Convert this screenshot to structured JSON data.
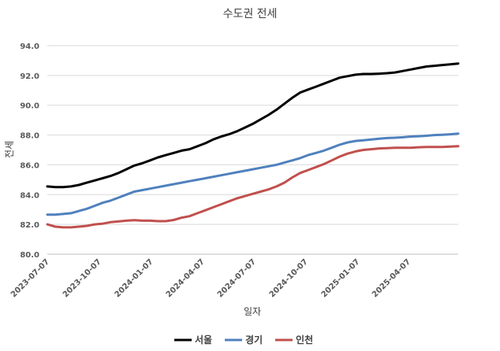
{
  "chart_data": {
    "type": "line",
    "title": "수도권 전세",
    "xlabel": "일자",
    "ylabel": "전세",
    "ylim": [
      80.0,
      94.0
    ],
    "ytick_step": 2.0,
    "yticks": [
      "80.0",
      "82.0",
      "84.0",
      "86.0",
      "88.0",
      "90.0",
      "92.0",
      "94.0"
    ],
    "x_start": "2023-07-03",
    "x_end": "2025-06-30",
    "xticks": [
      "2023-07-07",
      "2023-10-07",
      "2024-01-07",
      "2024-04-07",
      "2024-07-07",
      "2024-10-07",
      "2025-01-07",
      "2025-04-07"
    ],
    "grid": true,
    "legend_position": "bottom",
    "series": [
      {
        "name": "서울",
        "color": "#000000",
        "points": [
          [
            "2023-07-03",
            84.55
          ],
          [
            "2023-07-17",
            84.5
          ],
          [
            "2023-07-31",
            84.5
          ],
          [
            "2023-08-14",
            84.55
          ],
          [
            "2023-08-28",
            84.65
          ],
          [
            "2023-09-11",
            84.8
          ],
          [
            "2023-09-25",
            84.95
          ],
          [
            "2023-10-09",
            85.1
          ],
          [
            "2023-10-23",
            85.25
          ],
          [
            "2023-11-06",
            85.45
          ],
          [
            "2023-11-20",
            85.7
          ],
          [
            "2023-12-04",
            85.95
          ],
          [
            "2023-12-18",
            86.1
          ],
          [
            "2024-01-01",
            86.3
          ],
          [
            "2024-01-15",
            86.5
          ],
          [
            "2024-01-29",
            86.65
          ],
          [
            "2024-02-12",
            86.8
          ],
          [
            "2024-02-26",
            86.95
          ],
          [
            "2024-03-11",
            87.05
          ],
          [
            "2024-03-25",
            87.25
          ],
          [
            "2024-04-08",
            87.45
          ],
          [
            "2024-04-22",
            87.7
          ],
          [
            "2024-05-06",
            87.9
          ],
          [
            "2024-05-20",
            88.05
          ],
          [
            "2024-06-03",
            88.25
          ],
          [
            "2024-06-17",
            88.5
          ],
          [
            "2024-07-01",
            88.75
          ],
          [
            "2024-07-15",
            89.05
          ],
          [
            "2024-07-29",
            89.35
          ],
          [
            "2024-08-12",
            89.7
          ],
          [
            "2024-08-26",
            90.1
          ],
          [
            "2024-09-09",
            90.5
          ],
          [
            "2024-09-23",
            90.85
          ],
          [
            "2024-10-07",
            91.05
          ],
          [
            "2024-10-21",
            91.25
          ],
          [
            "2024-11-04",
            91.45
          ],
          [
            "2024-11-18",
            91.65
          ],
          [
            "2024-12-02",
            91.85
          ],
          [
            "2024-12-16",
            91.95
          ],
          [
            "2024-12-30",
            92.05
          ],
          [
            "2025-01-13",
            92.1
          ],
          [
            "2025-01-27",
            92.1
          ],
          [
            "2025-02-10",
            92.12
          ],
          [
            "2025-02-24",
            92.15
          ],
          [
            "2025-03-10",
            92.2
          ],
          [
            "2025-03-24",
            92.3
          ],
          [
            "2025-04-07",
            92.4
          ],
          [
            "2025-04-21",
            92.5
          ],
          [
            "2025-05-05",
            92.6
          ],
          [
            "2025-05-19",
            92.65
          ],
          [
            "2025-06-02",
            92.7
          ],
          [
            "2025-06-16",
            92.75
          ],
          [
            "2025-06-30",
            92.8
          ]
        ]
      },
      {
        "name": "경기",
        "color": "#4f81bd",
        "points": [
          [
            "2023-07-03",
            82.65
          ],
          [
            "2023-07-17",
            82.65
          ],
          [
            "2023-07-31",
            82.7
          ],
          [
            "2023-08-14",
            82.75
          ],
          [
            "2023-08-28",
            82.9
          ],
          [
            "2023-09-11",
            83.05
          ],
          [
            "2023-09-25",
            83.25
          ],
          [
            "2023-10-09",
            83.45
          ],
          [
            "2023-10-23",
            83.6
          ],
          [
            "2023-11-06",
            83.8
          ],
          [
            "2023-11-20",
            84.0
          ],
          [
            "2023-12-04",
            84.2
          ],
          [
            "2023-12-18",
            84.3
          ],
          [
            "2024-01-01",
            84.4
          ],
          [
            "2024-01-15",
            84.5
          ],
          [
            "2024-01-29",
            84.6
          ],
          [
            "2024-02-12",
            84.7
          ],
          [
            "2024-02-26",
            84.8
          ],
          [
            "2024-03-11",
            84.9
          ],
          [
            "2024-03-25",
            85.0
          ],
          [
            "2024-04-08",
            85.1
          ],
          [
            "2024-04-22",
            85.2
          ],
          [
            "2024-05-06",
            85.3
          ],
          [
            "2024-05-20",
            85.4
          ],
          [
            "2024-06-03",
            85.5
          ],
          [
            "2024-06-17",
            85.6
          ],
          [
            "2024-07-01",
            85.7
          ],
          [
            "2024-07-15",
            85.8
          ],
          [
            "2024-07-29",
            85.9
          ],
          [
            "2024-08-12",
            86.0
          ],
          [
            "2024-08-26",
            86.15
          ],
          [
            "2024-09-09",
            86.3
          ],
          [
            "2024-09-23",
            86.45
          ],
          [
            "2024-10-07",
            86.65
          ],
          [
            "2024-10-21",
            86.8
          ],
          [
            "2024-11-04",
            86.95
          ],
          [
            "2024-11-18",
            87.15
          ],
          [
            "2024-12-02",
            87.35
          ],
          [
            "2024-12-16",
            87.5
          ],
          [
            "2024-12-30",
            87.6
          ],
          [
            "2025-01-13",
            87.65
          ],
          [
            "2025-01-27",
            87.7
          ],
          [
            "2025-02-10",
            87.75
          ],
          [
            "2025-02-24",
            87.8
          ],
          [
            "2025-03-10",
            87.82
          ],
          [
            "2025-03-24",
            87.85
          ],
          [
            "2025-04-07",
            87.9
          ],
          [
            "2025-04-21",
            87.92
          ],
          [
            "2025-05-05",
            87.95
          ],
          [
            "2025-05-19",
            88.0
          ],
          [
            "2025-06-02",
            88.02
          ],
          [
            "2025-06-16",
            88.05
          ],
          [
            "2025-06-30",
            88.1
          ]
        ]
      },
      {
        "name": "인천",
        "color": "#c0504d",
        "points": [
          [
            "2023-07-03",
            82.0
          ],
          [
            "2023-07-17",
            81.85
          ],
          [
            "2023-07-31",
            81.8
          ],
          [
            "2023-08-14",
            81.8
          ],
          [
            "2023-08-28",
            81.85
          ],
          [
            "2023-09-11",
            81.9
          ],
          [
            "2023-09-25",
            82.0
          ],
          [
            "2023-10-09",
            82.05
          ],
          [
            "2023-10-23",
            82.15
          ],
          [
            "2023-11-06",
            82.2
          ],
          [
            "2023-11-20",
            82.25
          ],
          [
            "2023-12-04",
            82.28
          ],
          [
            "2023-12-18",
            82.25
          ],
          [
            "2024-01-01",
            82.25
          ],
          [
            "2024-01-15",
            82.22
          ],
          [
            "2024-01-29",
            82.22
          ],
          [
            "2024-02-12",
            82.3
          ],
          [
            "2024-02-26",
            82.45
          ],
          [
            "2024-03-11",
            82.55
          ],
          [
            "2024-03-25",
            82.75
          ],
          [
            "2024-04-08",
            82.95
          ],
          [
            "2024-04-22",
            83.15
          ],
          [
            "2024-05-06",
            83.35
          ],
          [
            "2024-05-20",
            83.55
          ],
          [
            "2024-06-03",
            83.75
          ],
          [
            "2024-06-17",
            83.9
          ],
          [
            "2024-07-01",
            84.05
          ],
          [
            "2024-07-15",
            84.2
          ],
          [
            "2024-07-29",
            84.35
          ],
          [
            "2024-08-12",
            84.55
          ],
          [
            "2024-08-26",
            84.8
          ],
          [
            "2024-09-09",
            85.15
          ],
          [
            "2024-09-23",
            85.45
          ],
          [
            "2024-10-07",
            85.65
          ],
          [
            "2024-10-21",
            85.85
          ],
          [
            "2024-11-04",
            86.05
          ],
          [
            "2024-11-18",
            86.3
          ],
          [
            "2024-12-02",
            86.55
          ],
          [
            "2024-12-16",
            86.75
          ],
          [
            "2024-12-30",
            86.9
          ],
          [
            "2025-01-13",
            87.0
          ],
          [
            "2025-01-27",
            87.05
          ],
          [
            "2025-02-10",
            87.1
          ],
          [
            "2025-02-24",
            87.12
          ],
          [
            "2025-03-10",
            87.15
          ],
          [
            "2025-03-24",
            87.15
          ],
          [
            "2025-04-07",
            87.15
          ],
          [
            "2025-04-21",
            87.18
          ],
          [
            "2025-05-05",
            87.2
          ],
          [
            "2025-05-19",
            87.2
          ],
          [
            "2025-06-02",
            87.2
          ],
          [
            "2025-06-16",
            87.22
          ],
          [
            "2025-06-30",
            87.25
          ]
        ]
      }
    ]
  }
}
